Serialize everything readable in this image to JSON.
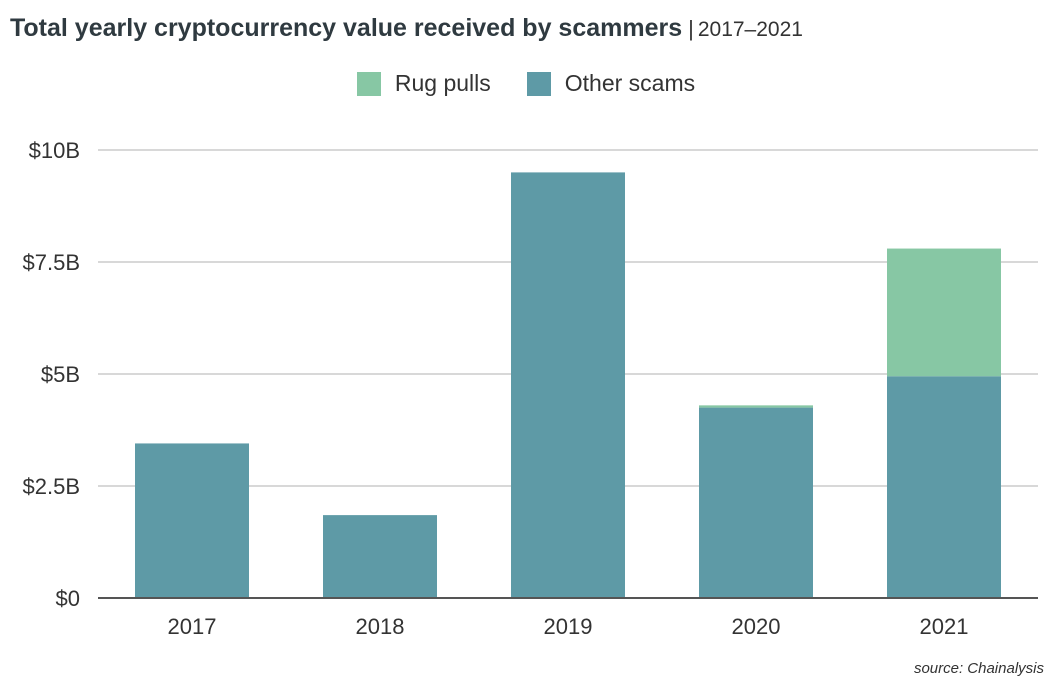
{
  "header": {
    "title": "Total yearly cryptocurrency value received by scammers",
    "separator": "|",
    "subtitle": "2017–2021"
  },
  "source": "source: Chainalysis",
  "colors": {
    "rug_pulls": "#87c7a4",
    "other_scams": "#5e9aa6",
    "grid": "#cccccc",
    "axis": "#555555"
  },
  "chart_data": {
    "type": "bar",
    "stacked": true,
    "title": "Total yearly cryptocurrency value received by scammers",
    "subtitle": "2017–2021",
    "categories": [
      "2017",
      "2018",
      "2019",
      "2020",
      "2021"
    ],
    "series": [
      {
        "name": "Other scams",
        "values": [
          3.45,
          1.85,
          9.5,
          4.25,
          4.95
        ]
      },
      {
        "name": "Rug pulls",
        "values": [
          0,
          0,
          0,
          0.05,
          2.85
        ]
      }
    ],
    "units": "billions USD",
    "ylim": [
      0,
      10
    ],
    "yticks": [
      0,
      2.5,
      5,
      7.5,
      10
    ],
    "ytick_labels": [
      "$0",
      "$2.5B",
      "$5B",
      "$7.5B",
      "$10B"
    ],
    "legend": [
      "Rug pulls",
      "Other scams"
    ],
    "legend_position": "top-center",
    "grid": true
  }
}
